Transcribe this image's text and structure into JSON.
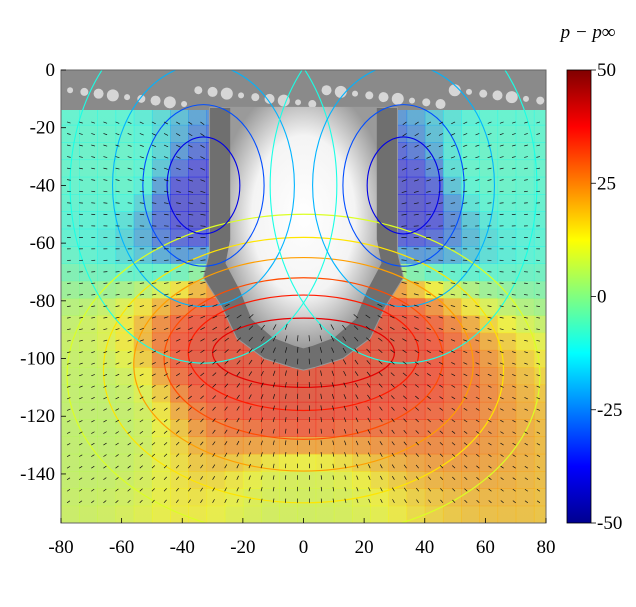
{
  "chart_data": {
    "type": "heatmap",
    "title": "",
    "xlabel": "",
    "ylabel": "",
    "xlim": [
      -80,
      80
    ],
    "ylim": [
      -157,
      0
    ],
    "xticks": [
      "-80",
      "-60",
      "-40",
      "-20",
      "0",
      "20",
      "40",
      "60",
      "80"
    ],
    "yticks": [
      "0",
      "-20",
      "-40",
      "-60",
      "-80",
      "-100",
      "-120",
      "-140"
    ],
    "grid": false,
    "overlay": "photograph of cavity with velocity vector field (quiver) and pressure contour lines",
    "colorbar": {
      "label": "p − p∞",
      "range": [
        -50,
        50
      ],
      "ticks": [
        "50",
        "25",
        "0",
        "-25",
        "-50"
      ],
      "colormap": "jet",
      "placement": "right"
    },
    "cavity_outline": [
      {
        "x": -31,
        "y": -13
      },
      {
        "x": -31,
        "y": -63
      },
      {
        "x": -33,
        "y": -72
      },
      {
        "x": -27,
        "y": -82
      },
      {
        "x": -22,
        "y": -93
      },
      {
        "x": -13,
        "y": -100
      },
      {
        "x": -4,
        "y": -103
      },
      {
        "x": 0,
        "y": -104
      },
      {
        "x": 4,
        "y": -103
      },
      {
        "x": 13,
        "y": -100
      },
      {
        "x": 22,
        "y": -93
      },
      {
        "x": 27,
        "y": -82
      },
      {
        "x": 33,
        "y": -72
      },
      {
        "x": 31,
        "y": -63
      },
      {
        "x": 31,
        "y": -13
      }
    ],
    "pressure_field_samples": [
      {
        "x": -35,
        "y": -45,
        "value": -40
      },
      {
        "x": 35,
        "y": -45,
        "value": -40
      },
      {
        "x": -60,
        "y": -35,
        "value": -10
      },
      {
        "x": 60,
        "y": -35,
        "value": -10
      },
      {
        "x": 0,
        "y": -110,
        "value": 40
      },
      {
        "x": -25,
        "y": -95,
        "value": 40
      },
      {
        "x": 25,
        "y": -95,
        "value": 40
      },
      {
        "x": 0,
        "y": -150,
        "value": 8
      },
      {
        "x": -70,
        "y": -120,
        "value": 5
      }
    ]
  }
}
